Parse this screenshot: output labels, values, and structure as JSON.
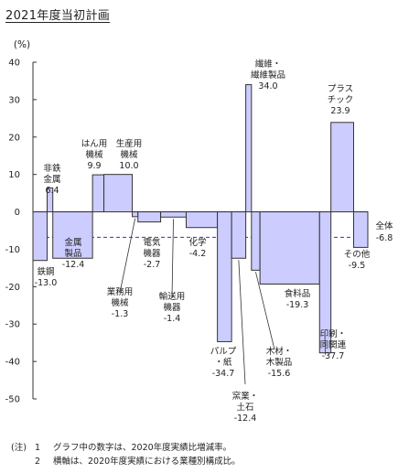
{
  "title": "2021年度当初計画",
  "chart_data": {
    "type": "bar",
    "variant": "variable-width",
    "ylabel": "(%)",
    "ylim": [
      -50,
      40
    ],
    "yticks": [
      40,
      30,
      20,
      10,
      0,
      -10,
      -20,
      -30,
      -40,
      -50
    ],
    "reference_line": {
      "name": "全体",
      "value": -6.8
    },
    "bar_color": "#ccccff",
    "edge_color": "#333333",
    "bars": [
      {
        "label": [
          "鉄鋼"
        ],
        "value": -13.0,
        "value_text": "-13.0",
        "width": 5
      },
      {
        "label": [
          "非鉄",
          "金属"
        ],
        "value": 6.4,
        "value_text": "6.4",
        "width": 2
      },
      {
        "label": [
          "金属",
          "製品"
        ],
        "value": -12.4,
        "value_text": "-12.4",
        "width": 14
      },
      {
        "label": [
          "はん用",
          "機械"
        ],
        "value": 9.9,
        "value_text": "9.9",
        "width": 4
      },
      {
        "label": [
          "生産用",
          "機械"
        ],
        "value": 10.0,
        "value_text": "10.0",
        "width": 10
      },
      {
        "label": [
          "業務用",
          "機械"
        ],
        "value": -1.3,
        "value_text": "-1.3",
        "width": 2
      },
      {
        "label": [
          "電気",
          "機器"
        ],
        "value": -2.7,
        "value_text": "-2.7",
        "width": 8
      },
      {
        "label": [
          "輸送用",
          "機器"
        ],
        "value": -1.4,
        "value_text": "-1.4",
        "width": 9
      },
      {
        "label": [
          "化学"
        ],
        "value": -4.2,
        "value_text": "-4.2",
        "width": 11
      },
      {
        "label": [
          "パルプ",
          "・紙"
        ],
        "value": -34.7,
        "value_text": "-34.7",
        "width": 5
      },
      {
        "label": [
          "窯業・",
          "土石"
        ],
        "value": -12.4,
        "value_text": "-12.4",
        "width": 5
      },
      {
        "label": [
          "繊維・",
          "繊維製品"
        ],
        "value": 34.0,
        "value_text": "34.0",
        "width": 2
      },
      {
        "label": [
          "木材・",
          "木製品"
        ],
        "value": -15.6,
        "value_text": "-15.6",
        "width": 3
      },
      {
        "label": [
          "食料品"
        ],
        "value": -19.3,
        "value_text": "-19.3",
        "width": 21
      },
      {
        "label": [
          "印刷・",
          "同関連"
        ],
        "value": -37.7,
        "value_text": "-37.7",
        "width": 4
      },
      {
        "label": [
          "プラス",
          "チック"
        ],
        "value": 23.9,
        "value_text": "23.9",
        "width": 8
      },
      {
        "label": [
          "その他"
        ],
        "value": -9.5,
        "value_text": "-9.5",
        "width": 5
      }
    ]
  },
  "notes": [
    {
      "prefix": "(注)",
      "num": "1",
      "text": "グラフ中の数字は、2020年度実績比増減率。"
    },
    {
      "prefix": "",
      "num": "2",
      "text": "横軸は、2020年度実績における業種別構成比。"
    }
  ]
}
